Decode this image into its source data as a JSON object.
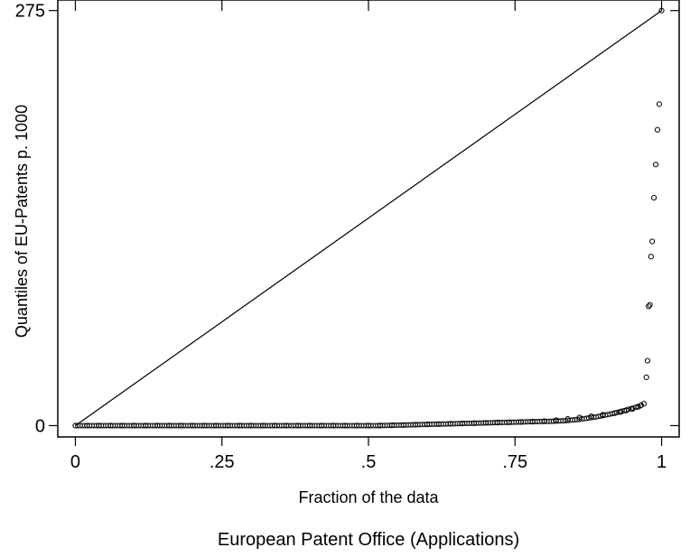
{
  "chart_data": {
    "type": "scatter",
    "xlabel": "Fraction of the data",
    "ylabel": "Quantiles of EU-Patents p. 1000",
    "note": "European Patent Office (Applications)",
    "xlim": [
      -0.03,
      1.03
    ],
    "ylim": [
      -7.5,
      282
    ],
    "x_ticks": [
      0,
      0.25,
      0.5,
      0.75,
      1
    ],
    "x_tick_labels": [
      "0",
      ".25",
      ".5",
      ".75",
      "1"
    ],
    "y_ticks": [
      0,
      275
    ],
    "y_tick_labels": [
      "0",
      "275"
    ],
    "grid": false,
    "reference_line": {
      "x": [
        0,
        1
      ],
      "y": [
        0,
        275
      ]
    },
    "series": [
      {
        "marker": "hollow-circle",
        "x": [
          0.0,
          0.02,
          0.04,
          0.06,
          0.08,
          0.1,
          0.12,
          0.14,
          0.16,
          0.18,
          0.2,
          0.22,
          0.24,
          0.26,
          0.28,
          0.3,
          0.32,
          0.34,
          0.36,
          0.38,
          0.4,
          0.42,
          0.44,
          0.46,
          0.48,
          0.5,
          0.52,
          0.54,
          0.56,
          0.58,
          0.6,
          0.62,
          0.64,
          0.66,
          0.68,
          0.7,
          0.72,
          0.74,
          0.76,
          0.78,
          0.8,
          0.82,
          0.84,
          0.86,
          0.88,
          0.9,
          0.92,
          0.93,
          0.94,
          0.95,
          0.96,
          0.965,
          0.97,
          0.974,
          0.976,
          0.978,
          0.98,
          0.982,
          0.984,
          0.987,
          0.99,
          0.993,
          0.996,
          1.0
        ],
        "y": [
          0,
          0,
          0,
          0,
          0,
          0,
          0,
          0,
          0,
          0,
          0,
          0,
          0,
          0,
          0,
          0,
          0,
          0,
          0,
          0,
          0,
          0,
          0,
          0,
          0,
          0,
          0.1,
          0.2,
          0.4,
          0.6,
          0.8,
          1.0,
          1.2,
          1.4,
          1.6,
          1.8,
          2.0,
          2.2,
          2.4,
          2.6,
          3.0,
          3.6,
          4.4,
          5.4,
          6.2,
          7.2,
          8.2,
          9.0,
          10.0,
          11.0,
          12.4,
          13.5,
          14.5,
          32,
          43,
          79,
          80,
          112,
          122,
          151,
          173,
          196,
          213,
          275
        ]
      }
    ]
  }
}
